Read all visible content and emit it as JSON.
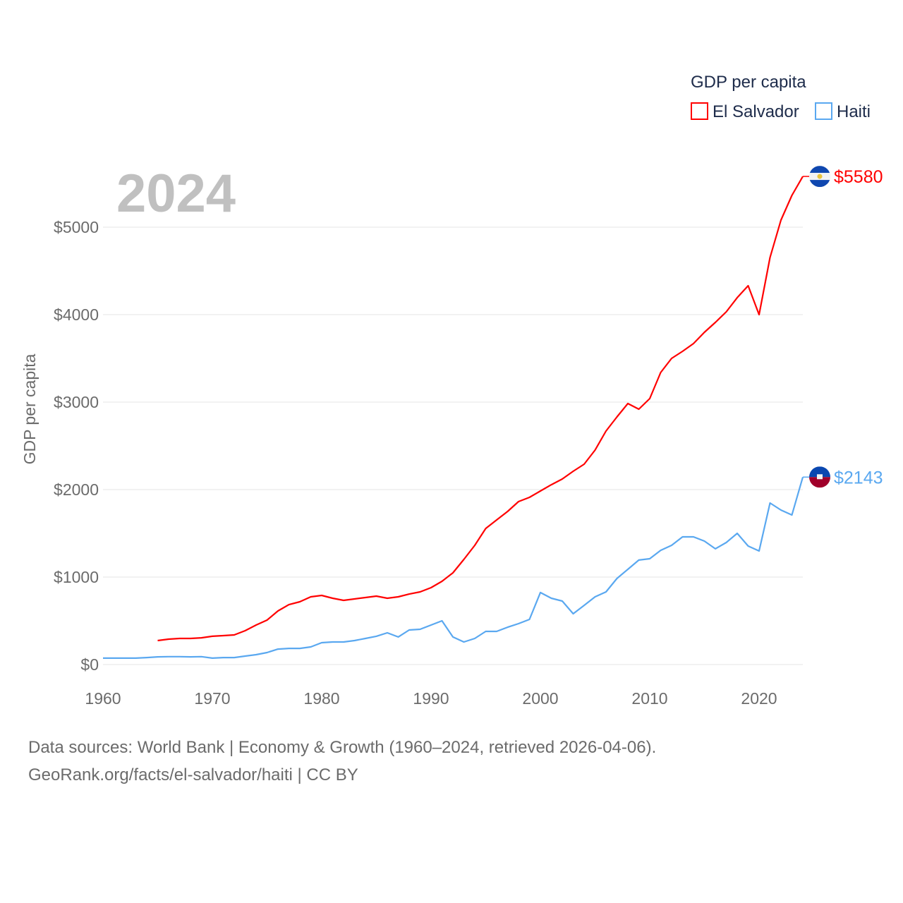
{
  "chart_data": {
    "type": "line",
    "title": "GDP per capita",
    "ylabel": "GDP per capita",
    "xlabel": "",
    "year_label": "2024",
    "xlim": [
      1960,
      2024
    ],
    "ylim": [
      0,
      5000
    ],
    "x_ticks": [
      1960,
      1970,
      1980,
      1990,
      2000,
      2010,
      2020
    ],
    "x_tick_labels": [
      "1960",
      "1970",
      "1980",
      "1990",
      "2000",
      "2010",
      "2020"
    ],
    "y_ticks": [
      0,
      1000,
      2000,
      3000,
      4000,
      5000
    ],
    "y_tick_labels": [
      "$0",
      "$1000",
      "$2000",
      "$3000",
      "$4000",
      "$5000"
    ],
    "grid": true,
    "legend_position": "top-right",
    "series": [
      {
        "name": "El Salvador",
        "color": "#ff0000",
        "end_label": "$5580",
        "flag": "el-salvador",
        "start_year": 1965,
        "values": [
          274,
          290,
          298,
          298,
          306,
          323,
          331,
          339,
          387,
          452,
          508,
          613,
          685,
          718,
          774,
          790,
          758,
          734,
          750,
          766,
          782,
          758,
          774,
          806,
          831,
          879,
          952,
          1048,
          1202,
          1363,
          1556,
          1653,
          1750,
          1863,
          1911,
          1984,
          2056,
          2121,
          2210,
          2290,
          2452,
          2669,
          2831,
          2984,
          2919,
          3040,
          3339,
          3500,
          3581,
          3669,
          3798,
          3911,
          4032,
          4194,
          4331,
          4000,
          4653,
          5081,
          5363,
          5580
        ]
      },
      {
        "name": "Haiti",
        "color": "#5aa8f0",
        "end_label": "$2143",
        "flag": "haiti",
        "start_year": 1960,
        "values": [
          73,
          73,
          73,
          73,
          80,
          88,
          90,
          90,
          88,
          90,
          73,
          80,
          80,
          97,
          113,
          137,
          177,
          185,
          185,
          202,
          250,
          258,
          258,
          274,
          298,
          323,
          363,
          315,
          395,
          403,
          452,
          500,
          315,
          258,
          298,
          379,
          379,
          427,
          468,
          516,
          823,
          758,
          726,
          581,
          677,
          774,
          831,
          984,
          1089,
          1194,
          1210,
          1306,
          1363,
          1460,
          1460,
          1411,
          1323,
          1395,
          1500,
          1355,
          1298,
          1847,
          1766,
          1710,
          2143
        ]
      }
    ]
  },
  "footer": {
    "line1": "Data sources: World Bank | Economy & Growth (1960–2024, retrieved 2026-04-06).",
    "line2": "GeoRank.org/facts/el-salvador/haiti | CC BY"
  }
}
